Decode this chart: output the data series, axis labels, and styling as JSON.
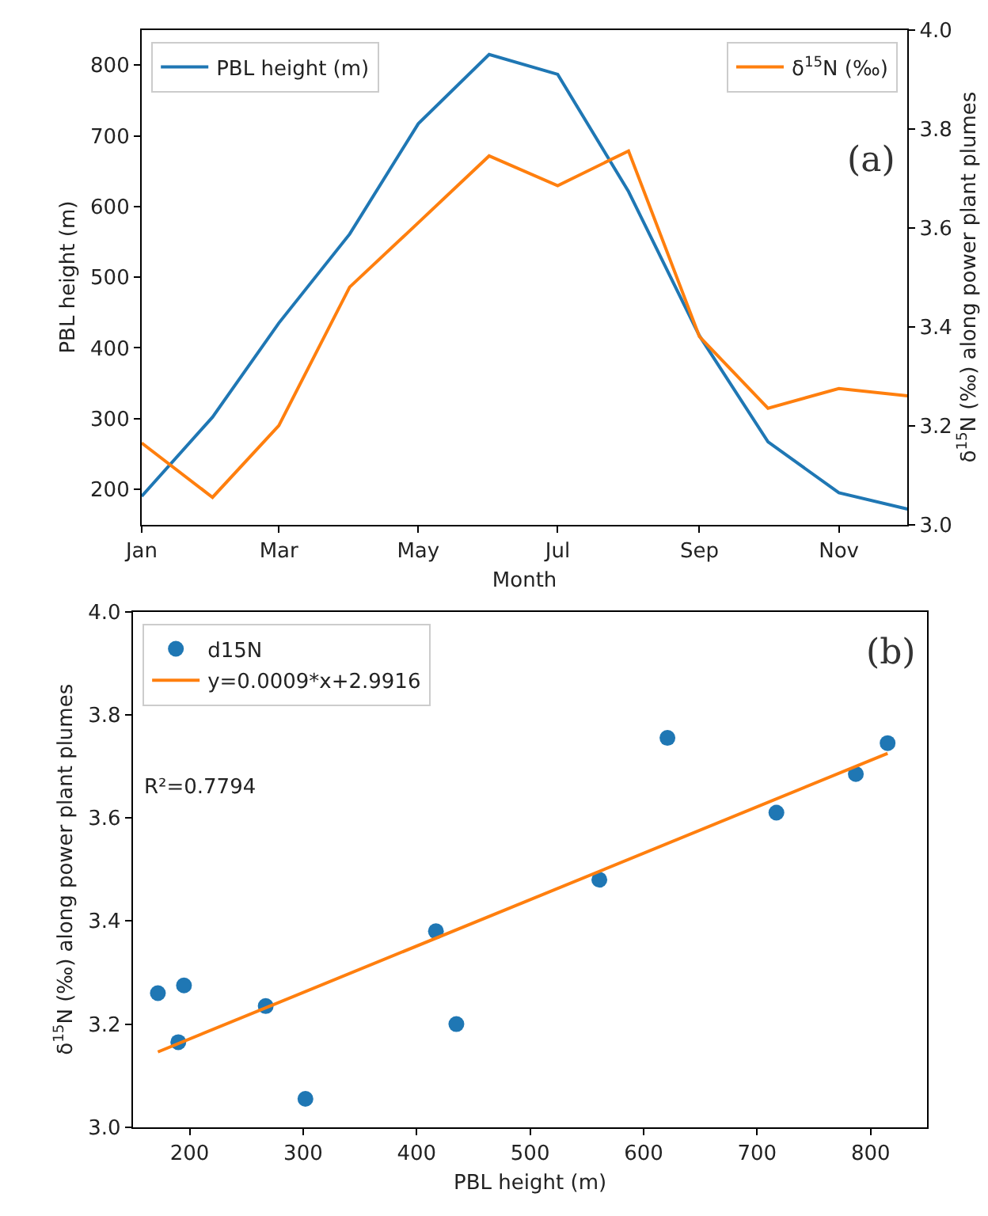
{
  "chart_data": [
    {
      "type": "line",
      "xlabel": "Month",
      "ylabel": "PBL height (m)",
      "y2label": "δ$^{15}$N (‰) along power plant plumes",
      "x": [
        "--01-01",
        "--02-01",
        "--03-01",
        "--04-01",
        "--05-01",
        "--06-01",
        "--07-01",
        "--08-01",
        "--09-01",
        "--10-01",
        "--11-01",
        "--12-01"
      ],
      "xlim": [
        "--01-01",
        "--12-01"
      ],
      "xticks": [
        {
          "value": "--01-01",
          "label": "Jan"
        },
        {
          "value": "--03-01",
          "label": "Mar"
        },
        {
          "value": "--05-01",
          "label": "May"
        },
        {
          "value": "--07-01",
          "label": "Jul"
        },
        {
          "value": "--09-01",
          "label": "Sep"
        },
        {
          "value": "--11-01",
          "label": "Nov"
        }
      ],
      "ylim": [
        150,
        850
      ],
      "yticks": [
        200,
        300,
        400,
        500,
        600,
        700,
        800
      ],
      "y2lim": [
        3.0,
        4.0
      ],
      "y2ticks": [
        {
          "value": 3.0,
          "label": "3.0"
        },
        3.2,
        3.4,
        3.6,
        3.8,
        {
          "value": 4.0,
          "label": "4.0"
        }
      ],
      "series": [
        {
          "name": "PBL height (m)",
          "color": "#1f77b4",
          "values": [
            190,
            302,
            435,
            561,
            717,
            815,
            787,
            621,
            417,
            267,
            195,
            172
          ]
        },
        {
          "name": "δ$^{15}$N (‰)",
          "color": "#ff7f0e",
          "axis": "y2",
          "values": [
            3.165,
            3.055,
            3.2,
            3.48,
            3.61,
            3.745,
            3.685,
            3.755,
            3.38,
            3.235,
            3.275,
            3.26
          ]
        }
      ],
      "legend": "top left",
      "marker": "none",
      "line_style": "solid",
      "annotations": [
        "(a)"
      ]
    },
    {
      "type": "scatter",
      "xlabel": "PBL height (m)",
      "ylabel": "δ$^{15}$N (‰) along power plant plumes",
      "x": [
        190,
        302,
        435,
        561,
        717,
        815,
        787,
        621,
        417,
        267,
        195,
        172
      ],
      "xlim": [
        150,
        850
      ],
      "xticks": [
        200,
        300,
        400,
        500,
        600,
        700,
        800
      ],
      "ylim": [
        3.0,
        4.0
      ],
      "yticks": [
        {
          "value": 3.0,
          "label": "3.0"
        },
        3.2,
        3.4,
        3.6,
        3.8,
        {
          "value": 4.0,
          "label": "4.0"
        }
      ],
      "series": [
        {
          "name": "d15N",
          "color": "#1f77b4",
          "values": [
            3.165,
            3.055,
            3.2,
            3.48,
            3.61,
            3.745,
            3.685,
            3.755,
            3.38,
            3.235,
            3.275,
            3.26
          ]
        },
        {
          "name": "y=0.0009*x+2.9916",
          "color": "#ff7f0e",
          "type": "line",
          "x": [
            172,
            815
          ],
          "values": [
            3.146,
            3.725
          ]
        }
      ],
      "legend": "top left",
      "annotations": [
        "(b)",
        "R²=0.7794"
      ]
    }
  ]
}
